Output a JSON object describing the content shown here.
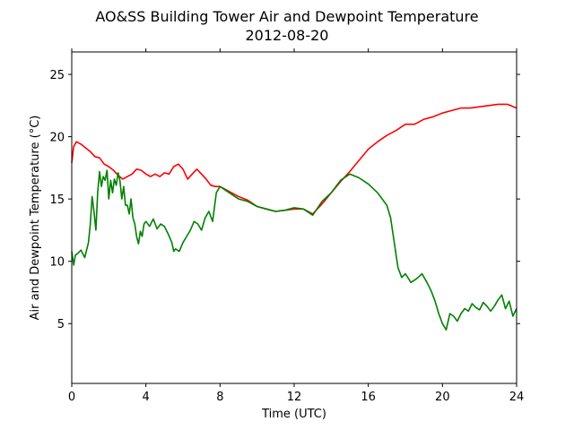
{
  "chart_data": {
    "type": "line",
    "title": "AO&SS Building Tower Air and Dewpoint Temperature",
    "subtitle": "2012-08-20",
    "xlabel": "Time (UTC)",
    "ylabel": "Air and Dewpoint Temperature (°C)",
    "xlim": [
      0,
      24
    ],
    "ylim": [
      0.2,
      26.8
    ],
    "xticks": [
      0,
      4,
      8,
      12,
      16,
      20,
      24
    ],
    "yticks": [
      5,
      10,
      15,
      20,
      25
    ],
    "grid": false,
    "legend": "none",
    "series": [
      {
        "color": "#ff0000",
        "x": [
          0.0,
          0.1,
          0.25,
          0.5,
          0.75,
          1.0,
          1.25,
          1.5,
          1.75,
          2.0,
          2.25,
          2.5,
          2.75,
          3.0,
          3.25,
          3.5,
          3.75,
          4.0,
          4.25,
          4.5,
          4.75,
          5.0,
          5.25,
          5.5,
          5.75,
          6.0,
          6.25,
          6.5,
          6.75,
          7.0,
          7.25,
          7.5,
          7.75,
          8.0,
          8.5,
          9.0,
          9.5,
          10.0,
          10.5,
          11.0,
          11.5,
          12.0,
          12.5,
          13.0,
          13.5,
          14.0,
          14.5,
          15.0,
          15.5,
          16.0,
          16.5,
          17.0,
          17.5,
          18.0,
          18.5,
          19.0,
          19.5,
          20.0,
          20.5,
          21.0,
          21.5,
          22.0,
          22.5,
          23.0,
          23.5,
          24.0
        ],
        "values": [
          17.9,
          19.2,
          19.6,
          19.4,
          19.1,
          18.8,
          18.4,
          18.3,
          17.8,
          17.6,
          17.3,
          16.9,
          16.6,
          16.8,
          17.0,
          17.4,
          17.3,
          17.0,
          16.8,
          17.0,
          16.8,
          17.1,
          17.0,
          17.6,
          17.8,
          17.4,
          16.6,
          17.0,
          17.4,
          17.0,
          16.6,
          16.1,
          16.0,
          16.0,
          15.6,
          15.2,
          14.9,
          14.4,
          14.2,
          14.0,
          14.1,
          14.2,
          14.2,
          13.8,
          14.6,
          15.5,
          16.4,
          17.2,
          18.1,
          19.0,
          19.6,
          20.1,
          20.5,
          21.0,
          21.0,
          21.4,
          21.6,
          21.9,
          22.1,
          22.3,
          22.3,
          22.4,
          22.5,
          22.6,
          22.6,
          22.3
        ]
      },
      {
        "color": "#008000",
        "x": [
          0.0,
          0.1,
          0.2,
          0.3,
          0.5,
          0.7,
          0.9,
          1.0,
          1.1,
          1.2,
          1.3,
          1.4,
          1.5,
          1.6,
          1.7,
          1.8,
          1.9,
          2.0,
          2.1,
          2.2,
          2.3,
          2.4,
          2.5,
          2.6,
          2.7,
          2.8,
          2.9,
          3.0,
          3.1,
          3.2,
          3.3,
          3.4,
          3.5,
          3.6,
          3.7,
          3.8,
          3.9,
          4.0,
          4.2,
          4.4,
          4.6,
          4.8,
          5.0,
          5.2,
          5.4,
          5.5,
          5.6,
          5.8,
          6.0,
          6.2,
          6.4,
          6.6,
          6.8,
          7.0,
          7.2,
          7.4,
          7.6,
          7.8,
          8.0,
          8.5,
          9.0,
          9.5,
          10.0,
          10.5,
          11.0,
          11.5,
          12.0,
          12.5,
          13.0,
          13.5,
          14.0,
          14.5,
          15.0,
          15.5,
          16.0,
          16.5,
          17.0,
          17.2,
          17.4,
          17.6,
          17.8,
          18.0,
          18.3,
          18.6,
          18.9,
          19.2,
          19.4,
          19.6,
          19.8,
          20.0,
          20.2,
          20.4,
          20.6,
          20.8,
          21.0,
          21.2,
          21.4,
          21.6,
          21.8,
          22.0,
          22.2,
          22.4,
          22.6,
          22.8,
          23.0,
          23.2,
          23.4,
          23.6,
          23.8,
          24.0
        ],
        "values": [
          10.8,
          9.7,
          10.5,
          10.6,
          10.9,
          10.3,
          11.5,
          13.0,
          15.2,
          14.0,
          12.5,
          15.5,
          17.2,
          16.0,
          16.8,
          16.5,
          17.3,
          15.0,
          16.5,
          15.5,
          16.6,
          16.1,
          17.1,
          16.5,
          15.0,
          16.0,
          14.5,
          14.5,
          13.8,
          15.0,
          13.5,
          13.0,
          12.0,
          11.4,
          12.4,
          12.0,
          13.0,
          13.2,
          12.8,
          13.4,
          12.6,
          13.0,
          12.8,
          12.2,
          11.5,
          10.8,
          11.0,
          10.8,
          11.5,
          12.0,
          12.5,
          13.2,
          13.0,
          12.5,
          13.5,
          14.0,
          13.2,
          15.5,
          16.0,
          15.5,
          15.0,
          14.8,
          14.4,
          14.2,
          14.0,
          14.1,
          14.3,
          14.2,
          13.7,
          14.8,
          15.5,
          16.5,
          17.0,
          16.7,
          16.2,
          15.5,
          14.5,
          13.5,
          11.5,
          9.5,
          8.7,
          9.0,
          8.3,
          8.6,
          9.0,
          8.2,
          7.6,
          6.8,
          5.8,
          5.0,
          4.5,
          5.8,
          5.6,
          5.2,
          5.8,
          6.2,
          6.0,
          6.6,
          6.3,
          6.1,
          6.7,
          6.4,
          6.0,
          6.4,
          6.9,
          7.3,
          6.2,
          6.8,
          5.6,
          6.2
        ]
      }
    ]
  }
}
